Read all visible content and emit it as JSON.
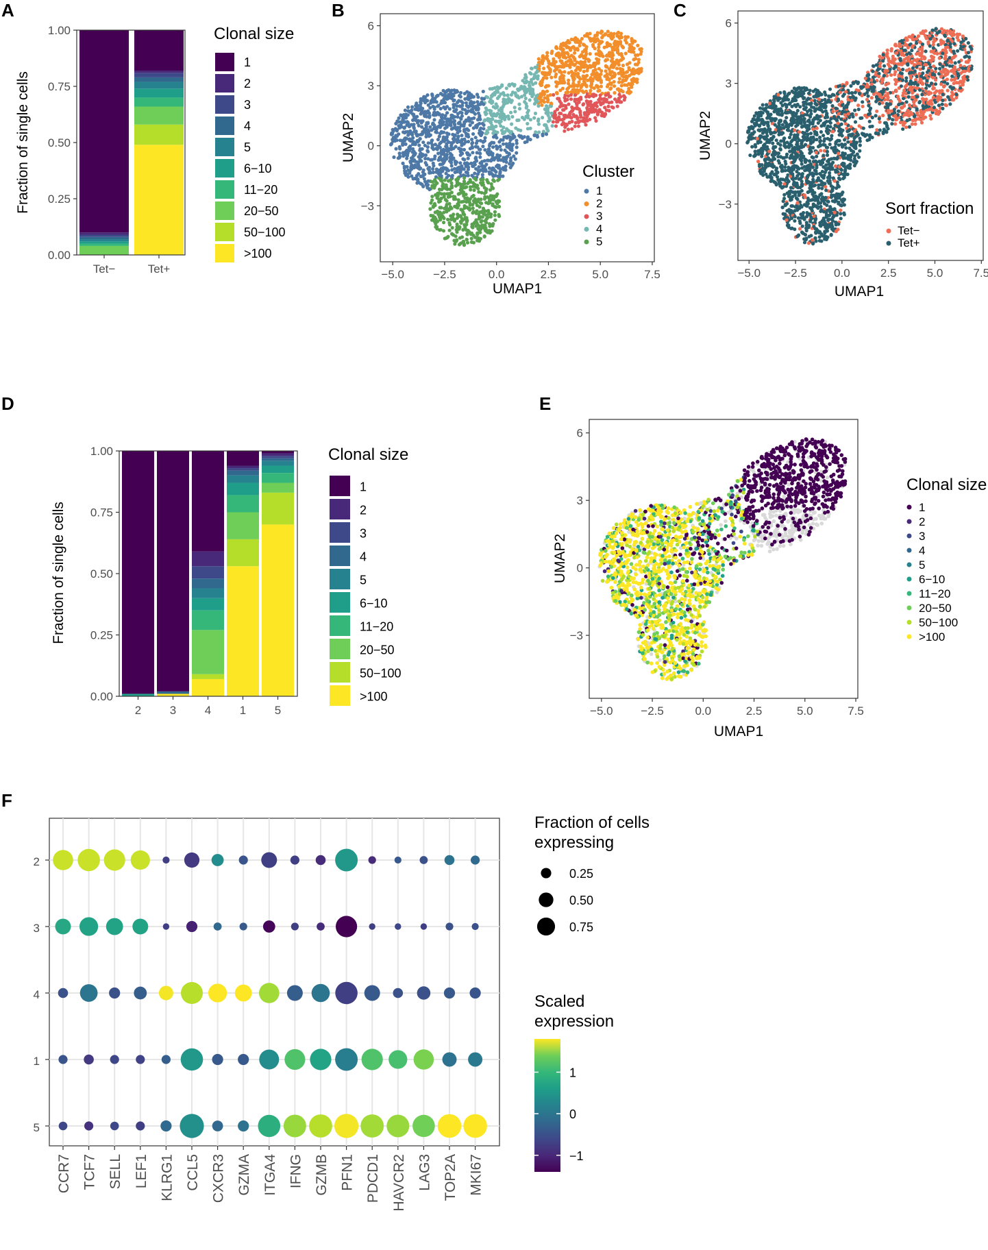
{
  "panel_labels": [
    "A",
    "B",
    "C",
    "D",
    "E",
    "F"
  ],
  "colors": {
    "clonal": [
      "#440154",
      "#482878",
      "#3e4989",
      "#31688e",
      "#26828e",
      "#1f9e89",
      "#35b779",
      "#6ece58",
      "#b5de2b",
      "#fde725"
    ],
    "cluster": [
      "#4e79a7",
      "#f28e2b",
      "#e15759",
      "#76b7b2",
      "#59a14f"
    ],
    "sort": [
      "#ee6e55",
      "#2a5f6e"
    ],
    "background_points": "#d9d9d9"
  },
  "chart_data": [
    {
      "panel": "A",
      "type": "bar",
      "stacked": true,
      "title": "",
      "xlabel": "",
      "ylabel": "Fraction of single cells",
      "ylim": [
        0,
        1
      ],
      "yticks": [
        "0.00",
        "0.25",
        "0.50",
        "0.75",
        "1.00"
      ],
      "categories": [
        "Tet−",
        "Tet+"
      ],
      "legend_title": "Clonal size",
      "legend_labels": [
        "1",
        "2",
        "3",
        "4",
        "5",
        "6−10",
        "11−20",
        "20−50",
        "50−100",
        ">100"
      ],
      "stack_order_bottom_to_top": [
        ">100",
        "50−100",
        "20−50",
        "11−20",
        "6−10",
        "5",
        "4",
        "3",
        "2",
        "1"
      ],
      "series_values_bottom_to_top": {
        "Tet−": [
          0.0,
          0.0,
          0.04,
          0.01,
          0.01,
          0.01,
          0.01,
          0.01,
          0.01,
          0.9
        ],
        "Tet+": [
          0.49,
          0.09,
          0.08,
          0.04,
          0.04,
          0.03,
          0.02,
          0.02,
          0.01,
          0.18
        ]
      }
    },
    {
      "panel": "B",
      "type": "scatter",
      "xlabel": "UMAP1",
      "ylabel": "UMAP2",
      "xticks": [
        "−5.0",
        "−2.5",
        "0.0",
        "2.5",
        "5.0",
        "7.5"
      ],
      "yticks": [
        "−3",
        "0",
        "3",
        "6"
      ],
      "xlim": [
        -5.6,
        7.6
      ],
      "ylim": [
        -5.8,
        6.6
      ],
      "legend_title": "Cluster",
      "legend_labels": [
        "1",
        "2",
        "3",
        "4",
        "5"
      ],
      "cluster_regions": [
        {
          "label": "1",
          "center": [
            -2.3,
            0.5
          ],
          "spread": [
            1.5,
            1.6
          ]
        },
        {
          "label": "2",
          "center": [
            4.7,
            4.5
          ],
          "spread": [
            1.4,
            1.2
          ]
        },
        {
          "label": "3",
          "center": [
            4.6,
            1.4
          ],
          "spread": [
            1.3,
            1.0
          ]
        },
        {
          "label": "4",
          "center": [
            0.6,
            2.3
          ],
          "spread": [
            1.4,
            1.0
          ]
        },
        {
          "label": "5",
          "center": [
            -1.6,
            -3.2
          ],
          "spread": [
            1.0,
            1.1
          ]
        }
      ]
    },
    {
      "panel": "C",
      "type": "scatter",
      "xlabel": "UMAP1",
      "ylabel": "UMAP2",
      "xticks": [
        "−5.0",
        "−2.5",
        "0.0",
        "2.5",
        "5.0",
        "7.5"
      ],
      "yticks": [
        "−3",
        "0",
        "3",
        "6"
      ],
      "xlim": [
        -5.6,
        7.6
      ],
      "ylim": [
        -5.8,
        6.6
      ],
      "legend_title": "Sort fraction",
      "legend_labels": [
        "Tet−",
        "Tet+"
      ]
    },
    {
      "panel": "D",
      "type": "bar",
      "stacked": true,
      "xlabel": "",
      "ylabel": "Fraction of single cells",
      "ylim": [
        0,
        1
      ],
      "yticks": [
        "0.00",
        "0.25",
        "0.50",
        "0.75",
        "1.00"
      ],
      "categories": [
        "2",
        "3",
        "4",
        "1",
        "5"
      ],
      "legend_title": "Clonal size",
      "legend_labels": [
        "1",
        "2",
        "3",
        "4",
        "5",
        "6−10",
        "11−20",
        "20−50",
        "50−100",
        ">100"
      ],
      "series_values_bottom_to_top": {
        "2": [
          0.0,
          0.0,
          0.0,
          0.0,
          0.01,
          0.0,
          0.0,
          0.0,
          0.0,
          0.99
        ],
        "3": [
          0.01,
          0.0,
          0.0,
          0.0,
          0.0,
          0.0,
          0.01,
          0.0,
          0.0,
          0.98
        ],
        "4": [
          0.07,
          0.02,
          0.18,
          0.08,
          0.05,
          0.04,
          0.04,
          0.05,
          0.06,
          0.41
        ],
        "1": [
          0.53,
          0.11,
          0.11,
          0.07,
          0.05,
          0.03,
          0.02,
          0.01,
          0.01,
          0.06
        ],
        "5": [
          0.7,
          0.13,
          0.04,
          0.04,
          0.03,
          0.02,
          0.01,
          0.01,
          0.01,
          0.01
        ]
      }
    },
    {
      "panel": "E",
      "type": "scatter",
      "xlabel": "UMAP1",
      "ylabel": "UMAP2",
      "xticks": [
        "−5.0",
        "−2.5",
        "0.0",
        "2.5",
        "5.0",
        "7.5"
      ],
      "yticks": [
        "−3",
        "0",
        "3",
        "6"
      ],
      "xlim": [
        -5.6,
        7.6
      ],
      "ylim": [
        -5.8,
        6.6
      ],
      "legend_title": "Clonal size",
      "legend_labels": [
        "1",
        "2",
        "3",
        "4",
        "5",
        "6−10",
        "11−20",
        "20−50",
        "50−100",
        ">100"
      ]
    },
    {
      "panel": "F",
      "type": "dotplot",
      "rows": [
        "2",
        "3",
        "4",
        "1",
        "5"
      ],
      "genes": [
        "CCR7",
        "TCF7",
        "SELL",
        "LEF1",
        "KLRG1",
        "CCL5",
        "CXCR3",
        "GZMA",
        "ITGA4",
        "IFNG",
        "GZMB",
        "PFN1",
        "PDCD1",
        "HAVCR2",
        "LAG3",
        "TOP2A",
        "MKI67"
      ],
      "size_legend_title": [
        "Fraction of cells",
        "expressing"
      ],
      "size_legend_values": [
        0.25,
        0.5,
        0.75
      ],
      "size_legend_labels": [
        "0.25",
        "0.50",
        "0.75"
      ],
      "color_legend_title": [
        "Scaled",
        "expression"
      ],
      "color_legend_ticks": [
        "1",
        "0",
        "−1"
      ],
      "color_range": [
        -1.4,
        1.8
      ],
      "expression": [
        [
          1.55,
          1.55,
          1.55,
          1.55,
          -0.8,
          -0.85,
          0.15,
          -0.55,
          -0.8,
          -0.8,
          -1.0,
          0.3,
          -1.0,
          -0.5,
          -0.6,
          -0.2,
          -0.3
        ],
        [
          0.5,
          0.45,
          0.45,
          0.45,
          -0.8,
          -1.1,
          -0.35,
          -0.5,
          -1.35,
          -0.8,
          -1.0,
          -1.4,
          -0.8,
          -0.7,
          -0.8,
          -0.6,
          -0.6
        ],
        [
          -0.6,
          -0.15,
          -0.6,
          -0.45,
          1.75,
          1.45,
          1.8,
          1.8,
          1.35,
          -0.45,
          -0.15,
          -0.8,
          -0.5,
          -0.6,
          -0.6,
          -0.5,
          -0.55
        ],
        [
          -0.55,
          -0.85,
          -0.7,
          -0.75,
          -0.45,
          0.3,
          -0.5,
          -0.5,
          0.15,
          0.9,
          0.45,
          -0.05,
          0.9,
          0.85,
          1.15,
          -0.2,
          -0.1
        ],
        [
          -0.7,
          -0.95,
          -0.7,
          -0.8,
          -0.3,
          0.2,
          -0.35,
          -0.2,
          0.6,
          1.3,
          1.45,
          1.75,
          1.35,
          1.3,
          1.1,
          1.9,
          1.9
        ]
      ],
      "fraction": [
        [
          0.5,
          0.6,
          0.55,
          0.45,
          0.06,
          0.28,
          0.18,
          0.1,
          0.3,
          0.1,
          0.12,
          0.62,
          0.07,
          0.06,
          0.08,
          0.12,
          0.1
        ],
        [
          0.3,
          0.42,
          0.35,
          0.3,
          0.05,
          0.15,
          0.08,
          0.07,
          0.18,
          0.07,
          0.08,
          0.55,
          0.05,
          0.05,
          0.05,
          0.07,
          0.06
        ],
        [
          0.12,
          0.38,
          0.15,
          0.2,
          0.25,
          0.58,
          0.42,
          0.35,
          0.5,
          0.3,
          0.4,
          0.6,
          0.3,
          0.12,
          0.22,
          0.15,
          0.15
        ],
        [
          0.1,
          0.12,
          0.1,
          0.1,
          0.1,
          0.6,
          0.15,
          0.15,
          0.48,
          0.52,
          0.55,
          0.62,
          0.55,
          0.42,
          0.5,
          0.25,
          0.25
        ],
        [
          0.09,
          0.1,
          0.09,
          0.1,
          0.15,
          0.7,
          0.14,
          0.15,
          0.6,
          0.62,
          0.65,
          0.7,
          0.65,
          0.62,
          0.6,
          0.68,
          0.68
        ]
      ]
    }
  ]
}
